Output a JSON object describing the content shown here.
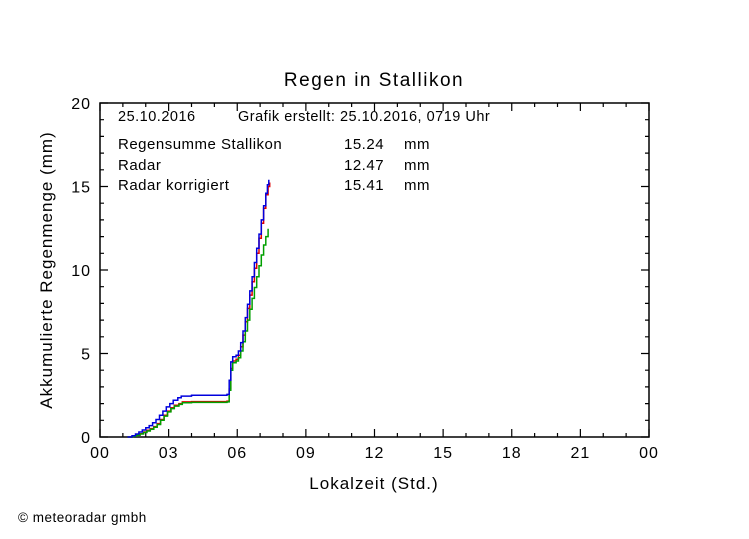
{
  "page": {
    "background": "#ffffff",
    "footer": "© meteoradar gmbh"
  },
  "chart_data": {
    "type": "line",
    "subtype": "step-accumulation",
    "title": "Regen in Stallikon",
    "xlabel": "Lokalzeit (Std.)",
    "ylabel": "Akkumulierte Regenmenge (mm)",
    "xlim": [
      0,
      24
    ],
    "ylim": [
      0,
      20
    ],
    "x_major_ticks": [
      0,
      3,
      6,
      9,
      12,
      15,
      18,
      21,
      24
    ],
    "x_tick_labels": [
      "00",
      "03",
      "06",
      "09",
      "12",
      "15",
      "18",
      "21",
      "00"
    ],
    "x_minor_step": 1,
    "y_major_ticks": [
      0,
      5,
      10,
      15,
      20
    ],
    "y_tick_labels": [
      "0",
      "5",
      "10",
      "15",
      "20"
    ],
    "y_minor_step": 1,
    "grid": false,
    "legend_position": "top-left-inside",
    "frame_color": "#000000",
    "annotation": {
      "date": "25.10.2016",
      "created": "Grafik erstellt: 25.10.2016, 0719 Uhr"
    },
    "series": [
      {
        "name": "Regensumme Stallikon",
        "total": "15.24",
        "unit": "mm",
        "color": "#e00000",
        "points": [
          [
            1.2,
            0
          ],
          [
            1.45,
            0.05
          ],
          [
            1.6,
            0.12
          ],
          [
            1.75,
            0.2
          ],
          [
            1.9,
            0.3
          ],
          [
            2.05,
            0.4
          ],
          [
            2.2,
            0.5
          ],
          [
            2.35,
            0.62
          ],
          [
            2.5,
            0.8
          ],
          [
            2.65,
            1.05
          ],
          [
            2.8,
            1.3
          ],
          [
            2.95,
            1.55
          ],
          [
            3.1,
            1.75
          ],
          [
            3.25,
            1.9
          ],
          [
            3.45,
            2.0
          ],
          [
            3.6,
            2.1
          ],
          [
            4.0,
            2.12
          ],
          [
            5.55,
            2.15
          ],
          [
            5.65,
            2.9
          ],
          [
            5.72,
            4.1
          ],
          [
            5.8,
            4.55
          ],
          [
            5.95,
            4.65
          ],
          [
            6.05,
            4.9
          ],
          [
            6.15,
            5.4
          ],
          [
            6.25,
            6.1
          ],
          [
            6.35,
            6.9
          ],
          [
            6.45,
            7.7
          ],
          [
            6.55,
            8.5
          ],
          [
            6.65,
            9.3
          ],
          [
            6.75,
            10.1
          ],
          [
            6.85,
            11.0
          ],
          [
            6.95,
            11.9
          ],
          [
            7.05,
            12.8
          ],
          [
            7.15,
            13.7
          ],
          [
            7.25,
            14.5
          ],
          [
            7.35,
            15.0
          ],
          [
            7.42,
            15.24
          ]
        ]
      },
      {
        "name": "Radar",
        "total": "12.47",
        "unit": "mm",
        "color": "#00a000",
        "points": [
          [
            1.2,
            0
          ],
          [
            1.45,
            0.05
          ],
          [
            1.6,
            0.1
          ],
          [
            1.75,
            0.18
          ],
          [
            1.9,
            0.27
          ],
          [
            2.05,
            0.36
          ],
          [
            2.2,
            0.46
          ],
          [
            2.35,
            0.58
          ],
          [
            2.5,
            0.75
          ],
          [
            2.65,
            1.0
          ],
          [
            2.8,
            1.25
          ],
          [
            2.95,
            1.5
          ],
          [
            3.1,
            1.7
          ],
          [
            3.25,
            1.85
          ],
          [
            3.45,
            1.95
          ],
          [
            3.6,
            2.05
          ],
          [
            4.0,
            2.07
          ],
          [
            5.55,
            2.1
          ],
          [
            5.65,
            2.8
          ],
          [
            5.72,
            4.0
          ],
          [
            5.8,
            4.45
          ],
          [
            5.95,
            4.55
          ],
          [
            6.05,
            4.75
          ],
          [
            6.15,
            5.15
          ],
          [
            6.25,
            5.7
          ],
          [
            6.35,
            6.35
          ],
          [
            6.45,
            7.0
          ],
          [
            6.55,
            7.65
          ],
          [
            6.65,
            8.3
          ],
          [
            6.75,
            8.95
          ],
          [
            6.85,
            9.6
          ],
          [
            6.95,
            10.25
          ],
          [
            7.05,
            10.9
          ],
          [
            7.15,
            11.5
          ],
          [
            7.25,
            12.0
          ],
          [
            7.35,
            12.47
          ]
        ]
      },
      {
        "name": "Radar korrigiert",
        "total": "15.41",
        "unit": "mm",
        "color": "#0000dd",
        "points": [
          [
            1.2,
            0
          ],
          [
            1.4,
            0.08
          ],
          [
            1.55,
            0.18
          ],
          [
            1.7,
            0.3
          ],
          [
            1.85,
            0.42
          ],
          [
            2.0,
            0.55
          ],
          [
            2.15,
            0.68
          ],
          [
            2.3,
            0.85
          ],
          [
            2.45,
            1.05
          ],
          [
            2.6,
            1.3
          ],
          [
            2.75,
            1.55
          ],
          [
            2.9,
            1.8
          ],
          [
            3.05,
            2.0
          ],
          [
            3.2,
            2.2
          ],
          [
            3.4,
            2.35
          ],
          [
            3.55,
            2.45
          ],
          [
            4.0,
            2.5
          ],
          [
            5.55,
            2.55
          ],
          [
            5.65,
            3.4
          ],
          [
            5.72,
            4.5
          ],
          [
            5.8,
            4.8
          ],
          [
            5.95,
            4.9
          ],
          [
            6.05,
            5.15
          ],
          [
            6.15,
            5.65
          ],
          [
            6.25,
            6.35
          ],
          [
            6.35,
            7.15
          ],
          [
            6.45,
            7.95
          ],
          [
            6.55,
            8.75
          ],
          [
            6.65,
            9.6
          ],
          [
            6.75,
            10.45
          ],
          [
            6.85,
            11.3
          ],
          [
            6.95,
            12.15
          ],
          [
            7.05,
            13.0
          ],
          [
            7.15,
            13.85
          ],
          [
            7.25,
            14.6
          ],
          [
            7.32,
            15.1
          ],
          [
            7.38,
            15.41
          ]
        ]
      }
    ]
  }
}
